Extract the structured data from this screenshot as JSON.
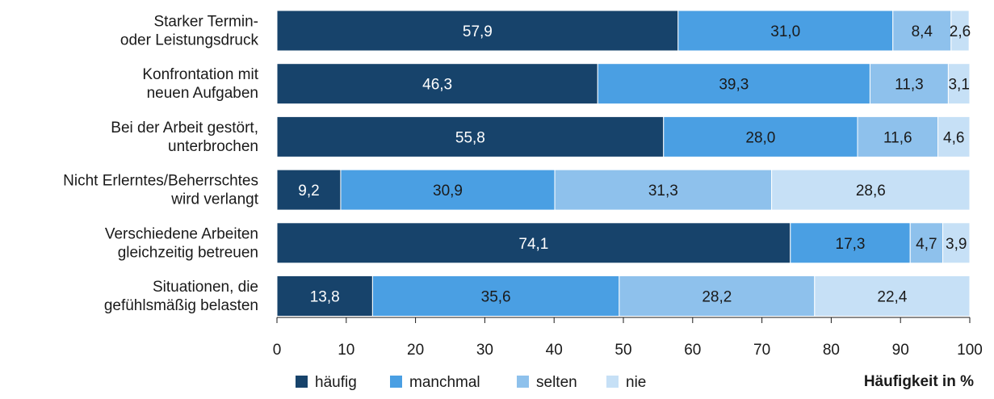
{
  "chart_data": {
    "type": "bar",
    "orientation": "horizontal",
    "stacked": true,
    "categories": [
      [
        "Starker Termin-",
        "oder Leistungsdruck"
      ],
      [
        "Konfrontation mit",
        "neuen Aufgaben"
      ],
      [
        "Bei der Arbeit gestört,",
        "unterbrochen"
      ],
      [
        "Nicht Erlerntes/Beherrschtes",
        "wird verlangt"
      ],
      [
        "Verschiedene Arbeiten",
        "gleichzeitig betreuen"
      ],
      [
        "Situationen, die",
        "gefühlsmäßig belasten"
      ]
    ],
    "series": [
      {
        "name": "häufig",
        "color": "#17436b",
        "label_color": "#ffffff",
        "values": [
          57.9,
          46.3,
          55.8,
          9.2,
          74.1,
          13.8
        ],
        "labels": [
          "57,9",
          "46,3",
          "55,8",
          "9,2",
          "74,1",
          "13,8"
        ]
      },
      {
        "name": "manchmal",
        "color": "#4a9fe3",
        "label_color": "#1a1a1a",
        "values": [
          31.0,
          39.3,
          28.0,
          30.9,
          17.3,
          35.6
        ],
        "labels": [
          "31,0",
          "39,3",
          "28,0",
          "30,9",
          "17,3",
          "35,6"
        ]
      },
      {
        "name": "selten",
        "color": "#8ec1ec",
        "label_color": "#1a1a1a",
        "values": [
          8.4,
          11.3,
          11.6,
          31.3,
          4.7,
          28.2
        ],
        "labels": [
          "8,4",
          "11,3",
          "11,6",
          "31,3",
          "4,7",
          "28,2"
        ]
      },
      {
        "name": "nie",
        "color": "#c6e0f6",
        "label_color": "#1a1a1a",
        "values": [
          2.6,
          3.1,
          4.6,
          28.6,
          3.9,
          22.4
        ],
        "labels": [
          "2,6",
          "3,1",
          "4,6",
          "28,6",
          "3,9",
          "22,4"
        ]
      }
    ],
    "xlim": [
      0,
      100
    ],
    "xticks": [
      0,
      10,
      20,
      30,
      40,
      50,
      60,
      70,
      80,
      90,
      100
    ],
    "xlabel": "Häufigkeit in %",
    "legend_position": "bottom-left",
    "grid": false
  }
}
